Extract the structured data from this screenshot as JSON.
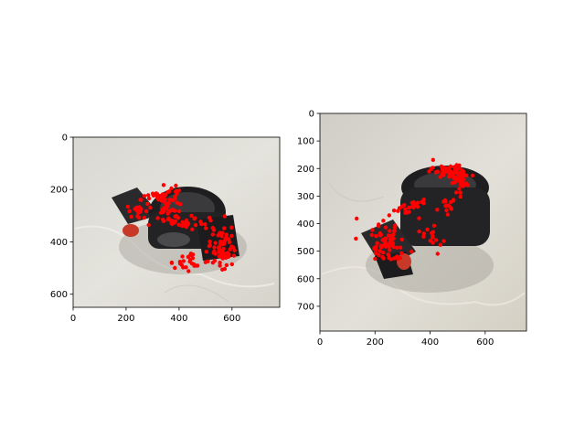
{
  "chart_data": [
    {
      "type": "scatter",
      "panel": "left",
      "image_size": [
        780,
        650
      ],
      "xlim": [
        0,
        780
      ],
      "ylim": [
        650,
        0
      ],
      "xticks": [
        0,
        200,
        400,
        600
      ],
      "yticks": [
        0,
        200,
        400,
        600
      ],
      "xtick_labels": [
        "0",
        "200",
        "400",
        "600"
      ],
      "ytick_labels": [
        "0",
        "200",
        "400",
        "600"
      ],
      "marker_color": "#ff0000",
      "background_image": "photo of a black plastic pipe clamp with red knob on a light marble surface",
      "clusters": [
        {
          "center": [
            340,
            230
          ],
          "spread": [
            60,
            30
          ],
          "count": 45
        },
        {
          "center": [
            250,
            280
          ],
          "spread": [
            45,
            35
          ],
          "count": 20
        },
        {
          "center": [
            420,
            330
          ],
          "spread": [
            70,
            25
          ],
          "count": 30
        },
        {
          "center": [
            560,
            420
          ],
          "spread": [
            50,
            70
          ],
          "count": 70
        },
        {
          "center": [
            440,
            480
          ],
          "spread": [
            60,
            25
          ],
          "count": 25
        },
        {
          "center": [
            370,
            280
          ],
          "spread": [
            50,
            35
          ],
          "count": 25
        }
      ]
    },
    {
      "type": "scatter",
      "panel": "right",
      "image_size": [
        750,
        790
      ],
      "xlim": [
        0,
        750
      ],
      "ylim": [
        790,
        0
      ],
      "xticks": [
        0,
        200,
        400,
        600
      ],
      "yticks": [
        0,
        100,
        200,
        300,
        400,
        500,
        600,
        700
      ],
      "xtick_labels": [
        "0",
        "200",
        "400",
        "600"
      ],
      "ytick_labels": [
        "0",
        "100",
        "200",
        "300",
        "400",
        "500",
        "600",
        "700"
      ],
      "marker_color": "#ff0000",
      "background_image": "photo of the same black pipe clamp rotated, on a light marble surface",
      "clusters": [
        {
          "center": [
            470,
            210
          ],
          "spread": [
            60,
            25
          ],
          "count": 45
        },
        {
          "center": [
            510,
            250
          ],
          "spread": [
            25,
            45
          ],
          "count": 30
        },
        {
          "center": [
            240,
            470
          ],
          "spread": [
            60,
            70
          ],
          "count": 70
        },
        {
          "center": [
            330,
            340
          ],
          "spread": [
            50,
            30
          ],
          "count": 25
        },
        {
          "center": [
            400,
            450
          ],
          "spread": [
            40,
            40
          ],
          "count": 15
        },
        {
          "center": [
            460,
            340
          ],
          "spread": [
            30,
            30
          ],
          "count": 15
        }
      ]
    }
  ]
}
